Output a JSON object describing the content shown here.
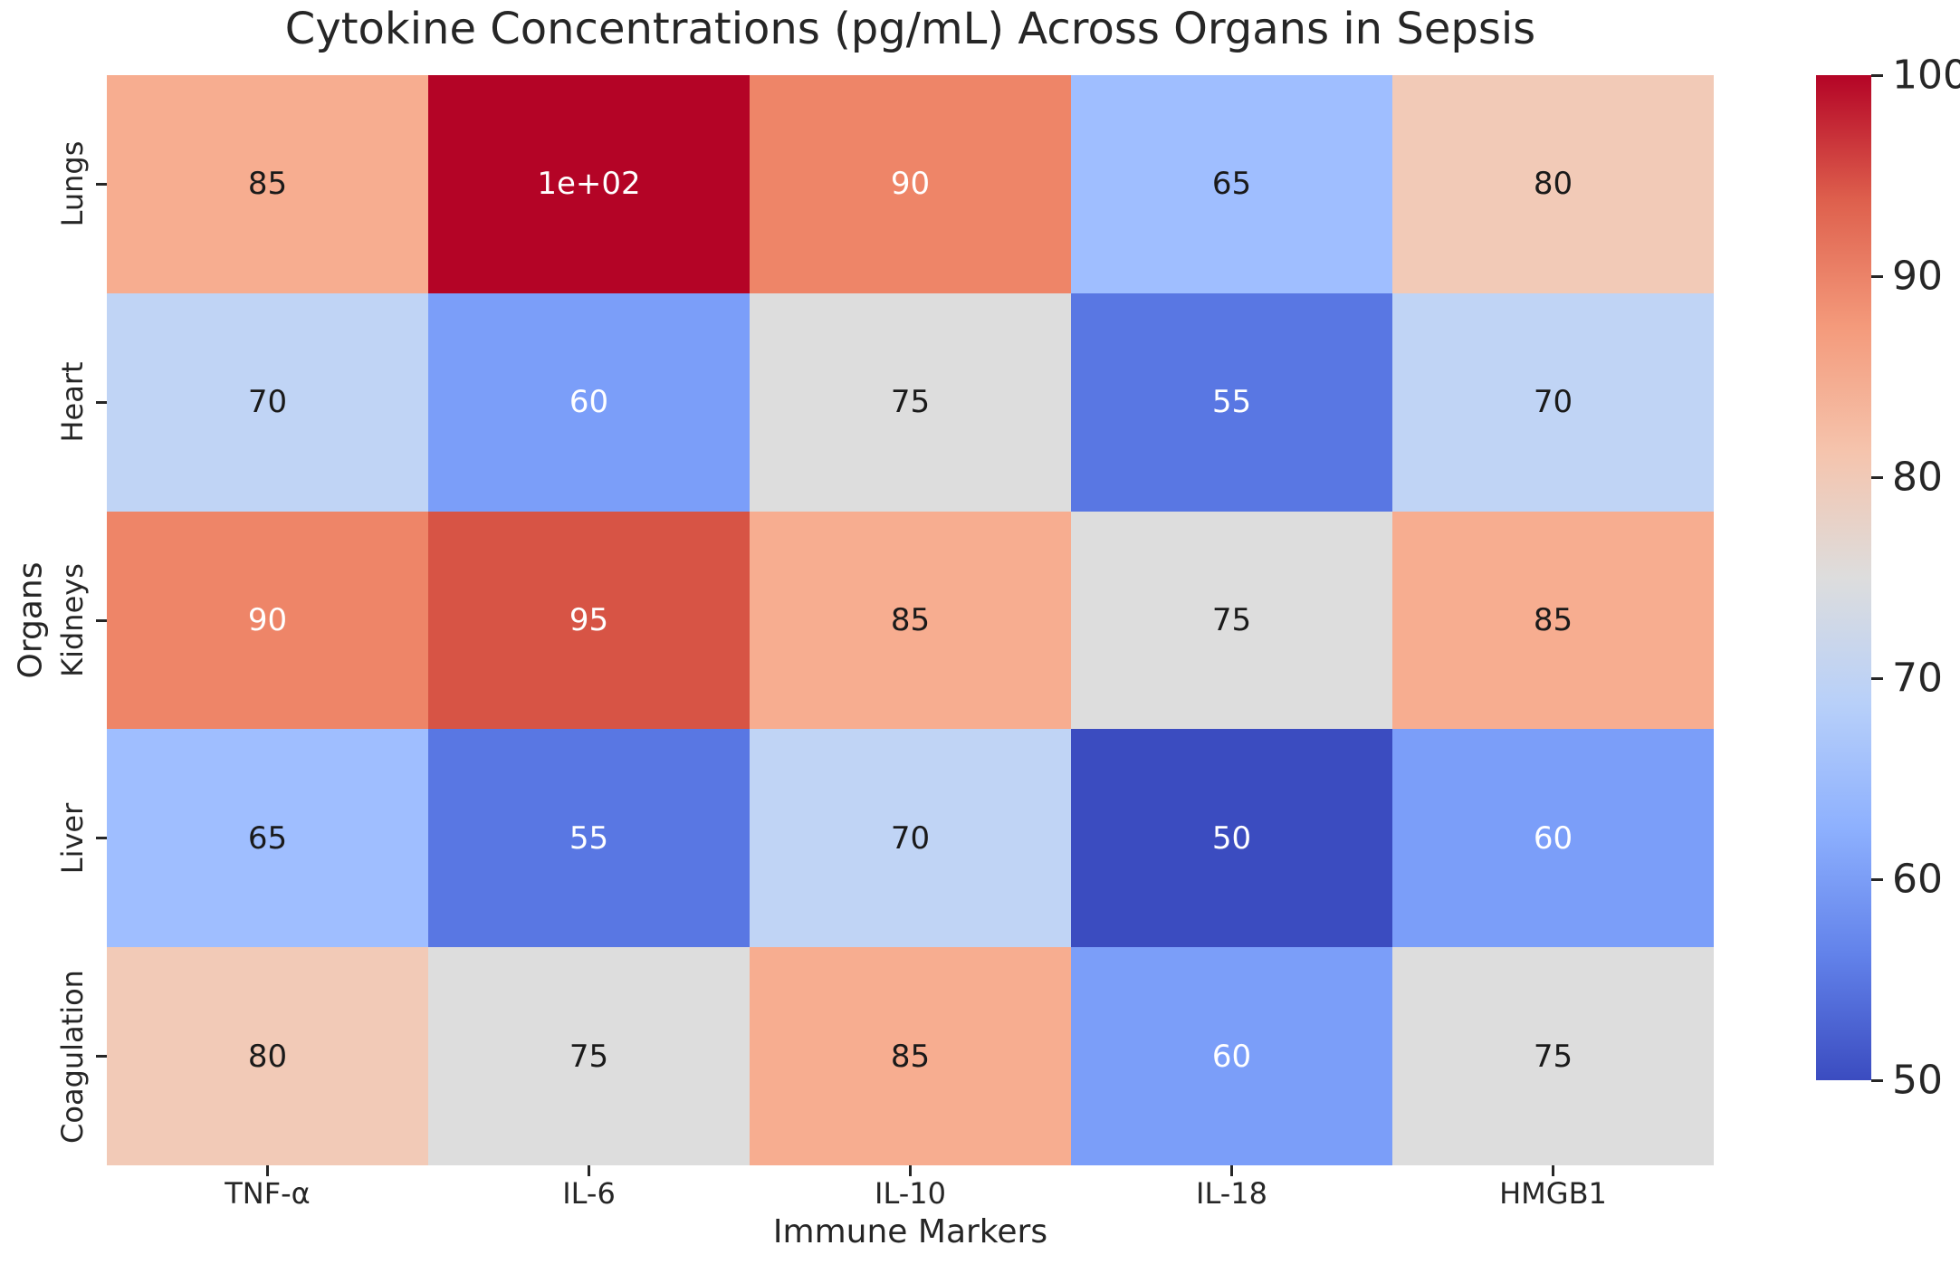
{
  "chart_data": {
    "type": "heatmap",
    "title": "Cytokine Concentrations (pg/mL) Across Organs in Sepsis",
    "xlabel": "Immune Markers",
    "ylabel": "Organs",
    "columns": [
      "TNF-α",
      "IL-6",
      "IL-10",
      "IL-18",
      "HMGB1"
    ],
    "rows": [
      "Lungs",
      "Heart",
      "Kidneys",
      "Liver",
      "Coagulation"
    ],
    "values": [
      [
        85,
        100,
        90,
        65,
        80
      ],
      [
        70,
        60,
        75,
        55,
        70
      ],
      [
        90,
        95,
        85,
        75,
        85
      ],
      [
        65,
        55,
        70,
        50,
        60
      ],
      [
        80,
        75,
        85,
        60,
        75
      ]
    ],
    "cell_labels": [
      [
        "85",
        "1e+02",
        "90",
        "65",
        "80"
      ],
      [
        "70",
        "60",
        "75",
        "55",
        "70"
      ],
      [
        "90",
        "95",
        "85",
        "75",
        "85"
      ],
      [
        "65",
        "55",
        "70",
        "50",
        "60"
      ],
      [
        "80",
        "75",
        "85",
        "60",
        "75"
      ]
    ],
    "colormap": "coolwarm",
    "vmin": 50,
    "vmax": 100,
    "legend_position": "right",
    "grid": false,
    "cell_colors": {
      "50": "#3B4CC0",
      "55": "#5977E3",
      "60": "#7B9EF9",
      "65": "#9FBEFF",
      "70": "#C0D4F5",
      "75": "#DDDDDD",
      "80": "#F2CAB7",
      "85": "#F7AD90",
      "90": "#EE8568",
      "95": "#D75445",
      "100": "#B40426"
    },
    "annotation_text_colors": {
      "50": "#FFFFFF",
      "55": "#FFFFFF",
      "60": "#FFFFFF",
      "65": "#1A1A1A",
      "70": "#1A1A1A",
      "75": "#1A1A1A",
      "80": "#1A1A1A",
      "85": "#1A1A1A",
      "90": "#FFFFFF",
      "95": "#FFFFFF",
      "100": "#FFFFFF"
    },
    "colorbar": {
      "ticks": [
        100,
        90,
        80,
        70,
        60,
        50
      ],
      "gradient_bottom_to_top": [
        "#3B4CC0",
        "#6282EA",
        "#8DB0FE",
        "#B8D0F9",
        "#DDDDDD",
        "#F5C4AD",
        "#F49A7B",
        "#DE604D",
        "#B40426"
      ]
    }
  }
}
